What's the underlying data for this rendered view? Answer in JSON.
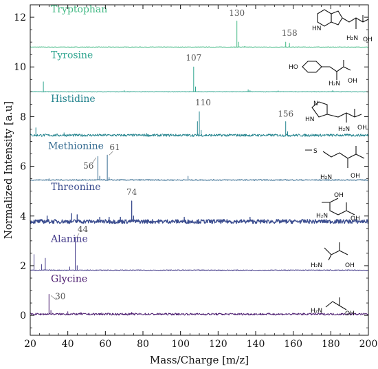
{
  "chart_data": {
    "type": "line",
    "title": "",
    "xlabel": "Mass/Charge [m/z]",
    "ylabel": "Normalized Intensity [a.u]",
    "xlim": [
      20,
      200
    ],
    "ylim": [
      -0.8,
      12.5
    ],
    "xticks": [
      20,
      40,
      60,
      80,
      100,
      120,
      140,
      160,
      180,
      200
    ],
    "yticks": [
      0,
      2,
      4,
      6,
      8,
      10,
      12
    ],
    "grid": false,
    "series": [
      {
        "name": "Tryptophan",
        "color": "#41b883",
        "baseline": 10.8,
        "labels": [
          "130",
          "158"
        ],
        "peaks": [
          [
            130,
            11.85
          ],
          [
            131,
            11.0
          ],
          [
            156,
            11.0
          ],
          [
            158,
            10.95
          ],
          [
            134,
            10.82
          ]
        ]
      },
      {
        "name": "Tyrosine",
        "color": "#2fa58f",
        "baseline": 9.0,
        "labels": [
          "107"
        ],
        "peaks": [
          [
            27,
            9.4
          ],
          [
            70,
            9.05
          ],
          [
            107,
            10.0
          ],
          [
            108,
            9.2
          ],
          [
            136,
            9.08
          ],
          [
            137,
            9.05
          ],
          [
            152,
            9.04
          ],
          [
            181,
            9.05
          ]
        ]
      },
      {
        "name": "Histidine",
        "color": "#22838d",
        "baseline": 7.25,
        "labels": [
          "110",
          "156"
        ],
        "peaks": [
          [
            23,
            7.55
          ],
          [
            38,
            7.35
          ],
          [
            82,
            7.32
          ],
          [
            95,
            7.3
          ],
          [
            109,
            7.8
          ],
          [
            110,
            8.2
          ],
          [
            111,
            7.45
          ],
          [
            156,
            7.8
          ],
          [
            157,
            7.4
          ],
          [
            170,
            7.3
          ],
          [
            180,
            7.3
          ],
          [
            190,
            7.28
          ]
        ]
      },
      {
        "name": "Methionine",
        "color": "#31688e",
        "baseline": 5.45,
        "labels": [
          "56",
          "61"
        ],
        "peaks": [
          [
            56,
            6.4
          ],
          [
            57,
            5.6
          ],
          [
            61,
            6.45
          ],
          [
            62,
            5.55
          ],
          [
            104,
            5.6
          ],
          [
            30,
            5.5
          ]
        ]
      },
      {
        "name": "Threonine",
        "color": "#3b4d8f",
        "baseline": 3.78,
        "labels": [
          "74"
        ],
        "peaks": [
          [
            29,
            4.0
          ],
          [
            42,
            4.1
          ],
          [
            45,
            4.05
          ],
          [
            57,
            3.95
          ],
          [
            62,
            3.95
          ],
          [
            68,
            3.95
          ],
          [
            74,
            4.6
          ],
          [
            75,
            4.0
          ],
          [
            102,
            3.95
          ],
          [
            137,
            3.95
          ]
        ]
      },
      {
        "name": "Alanine",
        "color": "#463d8b",
        "baseline": 1.82,
        "labels": [
          "44"
        ],
        "peaks": [
          [
            22,
            2.45
          ],
          [
            26,
            2.05
          ],
          [
            28,
            2.3
          ],
          [
            41,
            1.95
          ],
          [
            44,
            3.15
          ],
          [
            45,
            2.0
          ]
        ]
      },
      {
        "name": "Glycine",
        "color": "#4a1a6e",
        "baseline": 0.05,
        "labels": [
          "30"
        ],
        "peaks": [
          [
            30,
            0.85
          ],
          [
            31,
            0.2
          ],
          [
            40,
            0.15
          ],
          [
            47,
            0.12
          ],
          [
            58,
            0.1
          ],
          [
            74,
            0.12
          ]
        ]
      }
    ]
  }
}
